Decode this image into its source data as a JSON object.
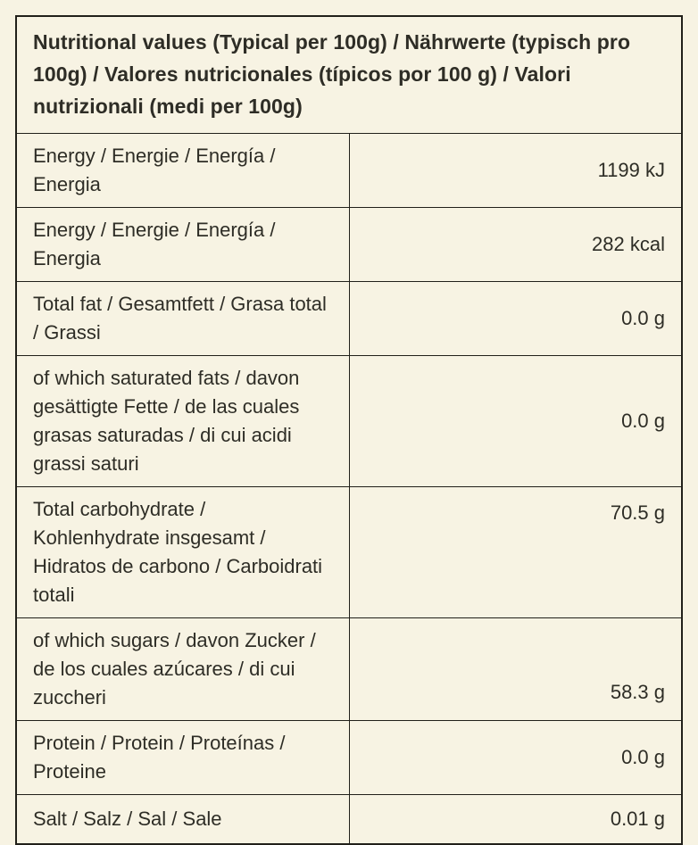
{
  "table": {
    "title": "Nutritional values (Typical per 100g) / Nährwerte (typisch pro 100g) / Valores nutricionales (típicos por 100 g) / Valori nutrizionali (medi per 100g)",
    "rows": [
      {
        "label": "Energy / Energie / Energía / Energia",
        "value": "1199 kJ"
      },
      {
        "label": "Energy / Energie / Energía / Energia",
        "value": "282 kcal"
      },
      {
        "label": "Total fat / Gesamtfett / Grasa total / Grassi",
        "value": "0.0 g"
      },
      {
        "label": "of which saturated fats / davon gesättigte Fette / de las cuales grasas saturadas / di cui acidi grassi saturi",
        "value": "0.0 g"
      },
      {
        "label": "Total carbohydrate / Kohlenhydrate insgesamt / Hidratos de carbono / Carboidrati totali",
        "value": "70.5 g",
        "value_align": "top"
      },
      {
        "label": "of which sugars / davon Zucker / de los cuales azúcares / di cui zuccheri",
        "value": "58.3 g",
        "value_align": "bottom"
      },
      {
        "label": "Protein / Protein / Proteínas / Proteine",
        "value": "0.0 g"
      },
      {
        "label": "Salt / Salz / Sal / Sale",
        "value": "0.01 g"
      }
    ]
  },
  "colors": {
    "background": "#f7f3e3",
    "border": "#21201a",
    "text": "#2e2d26"
  }
}
